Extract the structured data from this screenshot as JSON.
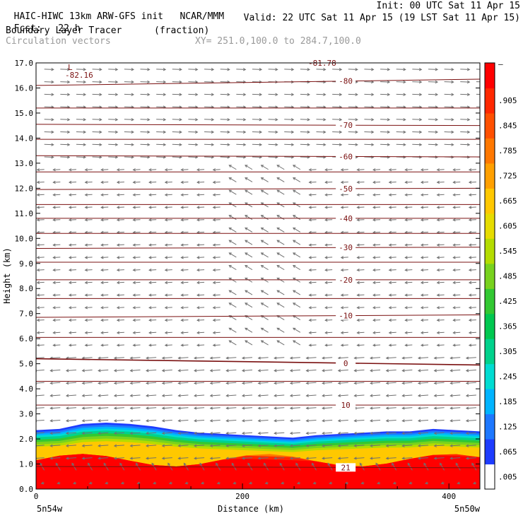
{
  "header": {
    "model": "HAIC-HIWC 13km ARW-GFS init",
    "org": "NCAR/MMM",
    "init": "Init: 00 UTC Sat 11 Apr 15",
    "fcst_label": "Fcst:",
    "fcst_value": "22 h",
    "valid": "Valid: 22 UTC Sat 11 Apr 15 (19 LST Sat 11 Apr 15)",
    "field": "Boundary Layer Tracer",
    "field_units": "(fraction)",
    "vectors": "Circulation vectors",
    "xy_range": "XY= 251.0,100.0 to 284.7,100.0"
  },
  "chart_data": {
    "type": "heatmap",
    "xlabel": "Distance (km)",
    "ylabel": "Height (km)",
    "xlim": [
      0,
      430
    ],
    "ylim": [
      0,
      17
    ],
    "x_ticks": [
      "0",
      "200",
      "400"
    ],
    "x_tick_values": [
      0,
      200,
      400
    ],
    "y_ticks": [
      "0.0",
      "1.0",
      "2.0",
      "3.0",
      "4.0",
      "5.0",
      "6.0",
      "7.0",
      "8.0",
      "9.0",
      "10.0",
      "11.0",
      "12.0",
      "13.0",
      "14.0",
      "15.0",
      "16.0",
      "17.0"
    ],
    "endpoint_left": "5n54w",
    "endpoint_right": "5n50w",
    "colorbar": {
      "labels": [
        ".005",
        ".065",
        ".125",
        ".185",
        ".245",
        ".305",
        ".365",
        ".425",
        ".485",
        ".545",
        ".605",
        ".665",
        ".725",
        ".785",
        ".845",
        ".905"
      ],
      "top_label": "–",
      "colors": [
        "#ffffff",
        "#1e3cff",
        "#1e78ff",
        "#00b4ff",
        "#00dcd2",
        "#00d28c",
        "#00c850",
        "#32c832",
        "#78d21e",
        "#b4dc00",
        "#e6dc00",
        "#ffc800",
        "#ffa000",
        "#ff7800",
        "#ff5000",
        "#ff2800",
        "#ff0000"
      ]
    },
    "tracer_top_km": [
      2.35,
      2.4,
      2.6,
      2.65,
      2.6,
      2.5,
      2.35,
      2.25,
      2.2,
      2.15,
      2.1,
      2.05,
      2.15,
      2.2,
      2.25,
      2.3,
      2.3,
      2.4,
      2.35,
      2.3
    ],
    "contours": [
      {
        "label": "21",
        "y": [
          0.9,
          0.85
        ]
      },
      {
        "label": "10",
        "y": [
          3.35,
          3.35
        ]
      },
      {
        "label": "",
        "y": [
          4.3,
          4.3
        ]
      },
      {
        "label": "0",
        "y": [
          5.2,
          4.95
        ]
      },
      {
        "label": "",
        "y": [
          6.05,
          6.05
        ]
      },
      {
        "label": "-10",
        "y": [
          6.85,
          6.95
        ]
      },
      {
        "label": "",
        "y": [
          7.6,
          7.6
        ]
      },
      {
        "label": "-20",
        "y": [
          8.35,
          8.35
        ]
      },
      {
        "label": "",
        "y": [
          9.05,
          9.05
        ]
      },
      {
        "label": "-30",
        "y": [
          9.6,
          9.65
        ]
      },
      {
        "label": "",
        "y": [
          10.2,
          10.2
        ]
      },
      {
        "label": "-40",
        "y": [
          10.8,
          10.8
        ]
      },
      {
        "label": "",
        "y": [
          11.35,
          11.35
        ]
      },
      {
        "label": "-50",
        "y": [
          11.95,
          12.0
        ]
      },
      {
        "label": "",
        "y": [
          12.65,
          12.65
        ]
      },
      {
        "label": "-60",
        "y": [
          13.3,
          13.25
        ]
      },
      {
        "label": "",
        "y": [
          13.95,
          13.95
        ]
      },
      {
        "label": "-70",
        "y": [
          14.55,
          14.5
        ]
      },
      {
        "label": "",
        "y": [
          15.2,
          15.2
        ]
      },
      {
        "label": "-80",
        "y": [
          16.1,
          16.35
        ]
      }
    ],
    "annotations": [
      "L",
      "-82.16",
      "-81.78"
    ]
  }
}
